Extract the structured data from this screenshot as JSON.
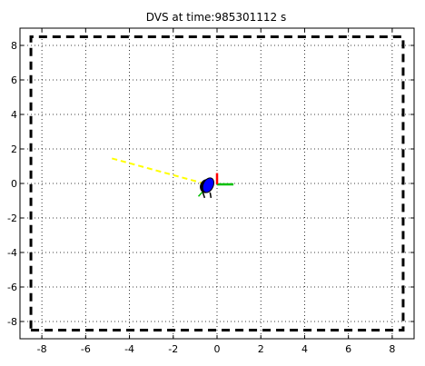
{
  "chart_data": {
    "type": "scatter",
    "title": "DVS at time:985301112 s",
    "xlabel": "",
    "ylabel": "",
    "xlim": [
      -9,
      9
    ],
    "ylim": [
      -9,
      9
    ],
    "x_ticks": [
      -8,
      -6,
      -4,
      -2,
      0,
      2,
      4,
      6,
      8
    ],
    "y_ticks": [
      -8,
      -6,
      -4,
      -2,
      0,
      2,
      4,
      6,
      8
    ],
    "grid": true,
    "boundary": {
      "style": "dashed",
      "color": "#000000",
      "corners": [
        [
          -8.5,
          -8.5
        ],
        [
          8.5,
          -8.5
        ],
        [
          8.5,
          8.5
        ],
        [
          -8.5,
          8.5
        ]
      ]
    },
    "trajectory": {
      "style": "dashed",
      "color": "#ffff00",
      "points": [
        [
          -4.8,
          1.45
        ],
        [
          -0.6,
          0.0
        ]
      ]
    },
    "robot": {
      "position": [
        -0.4,
        -0.1
      ],
      "body_color": "#0000ff",
      "axis_x_color": "#00c000",
      "axis_y_color": "#ff0000",
      "axis_x_end": [
        0.75,
        -0.05
      ],
      "axis_y_end": [
        0.0,
        0.6
      ],
      "axis_origin": [
        0.0,
        -0.05
      ],
      "green_tail": [
        [
          -0.6,
          -0.4
        ],
        [
          -0.85,
          -0.75
        ]
      ]
    }
  }
}
